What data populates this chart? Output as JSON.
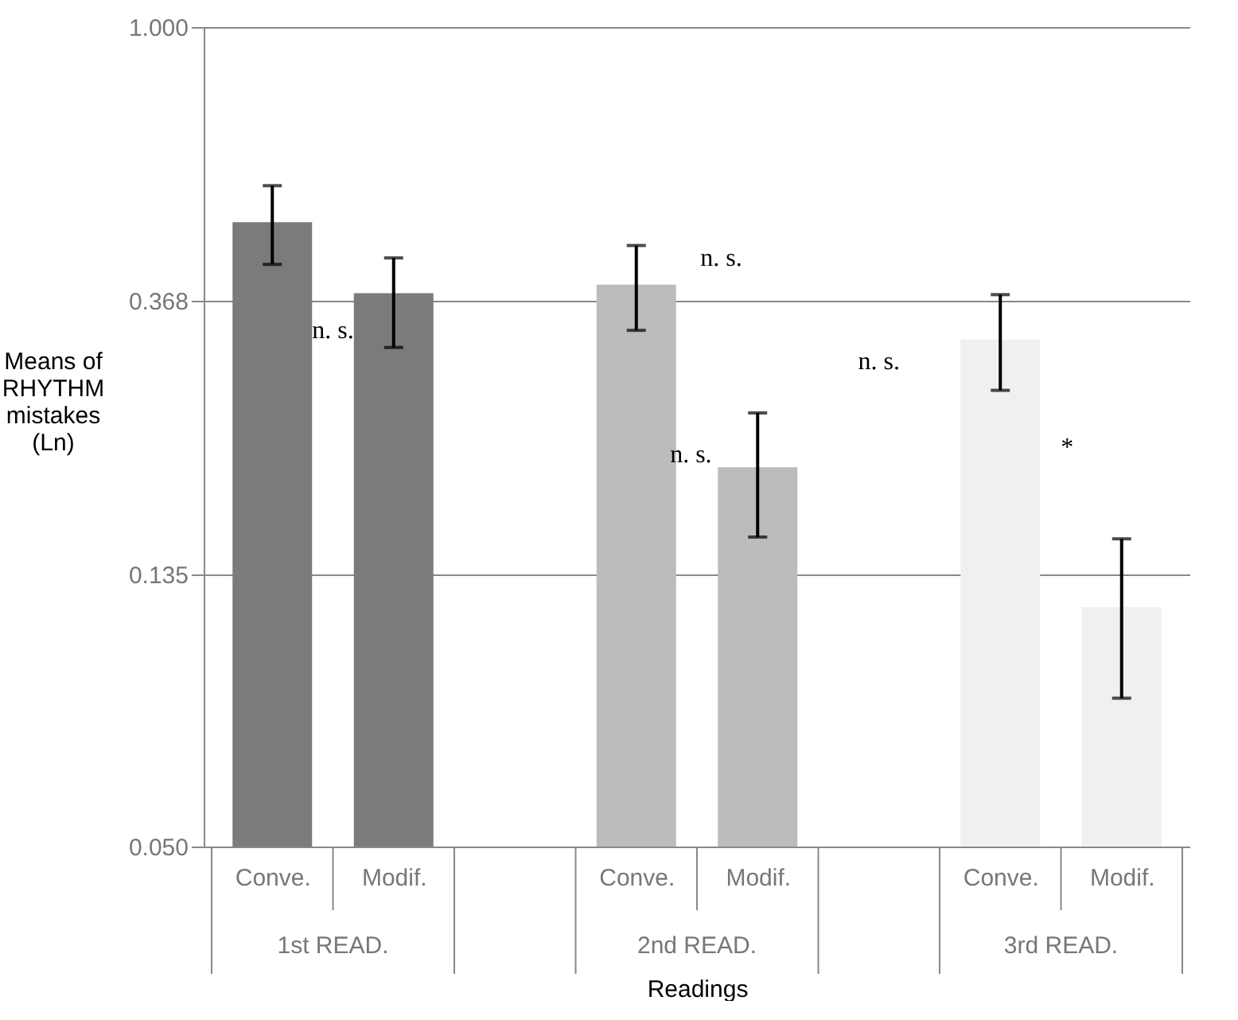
{
  "chart_data": {
    "type": "bar",
    "xlabel": "Readings",
    "ylabel": "Means of RHYTHM mistakes (Ln)",
    "categories": [
      "Conve.",
      "Modif.",
      null,
      "Conve.",
      "Modif.",
      null,
      "Conve.",
      "Modif."
    ],
    "values": [
      0.49,
      0.378,
      null,
      0.39,
      0.2,
      null,
      0.319,
      0.12
    ],
    "colors": [
      "#7b7b7b",
      "#7b7b7b",
      null,
      "#bcbcbc",
      "#bcbcbc",
      null,
      "#f0f0f0",
      "#f0f0f0"
    ],
    "errors": [
      [
        0.42,
        0.56
      ],
      [
        0.31,
        0.43
      ],
      null,
      [
        0.33,
        0.45
      ],
      [
        0.155,
        0.244
      ],
      null,
      [
        0.265,
        0.376
      ],
      [
        0.086,
        0.154
      ]
    ],
    "log": true,
    "ylim": [
      0.05,
      1.0
    ],
    "yticks": [
      {
        "value": 0.05,
        "label": "0.050"
      },
      0.135,
      0.368,
      {
        "value": 1.0,
        "label": "1.000"
      }
    ],
    "grid": "y",
    "legend": false,
    "annotations": [
      "1st READ.",
      "2nd READ.",
      "3rd READ.",
      "n. s.",
      "n. s.",
      "n. s.",
      "n. s.",
      "*"
    ]
  }
}
